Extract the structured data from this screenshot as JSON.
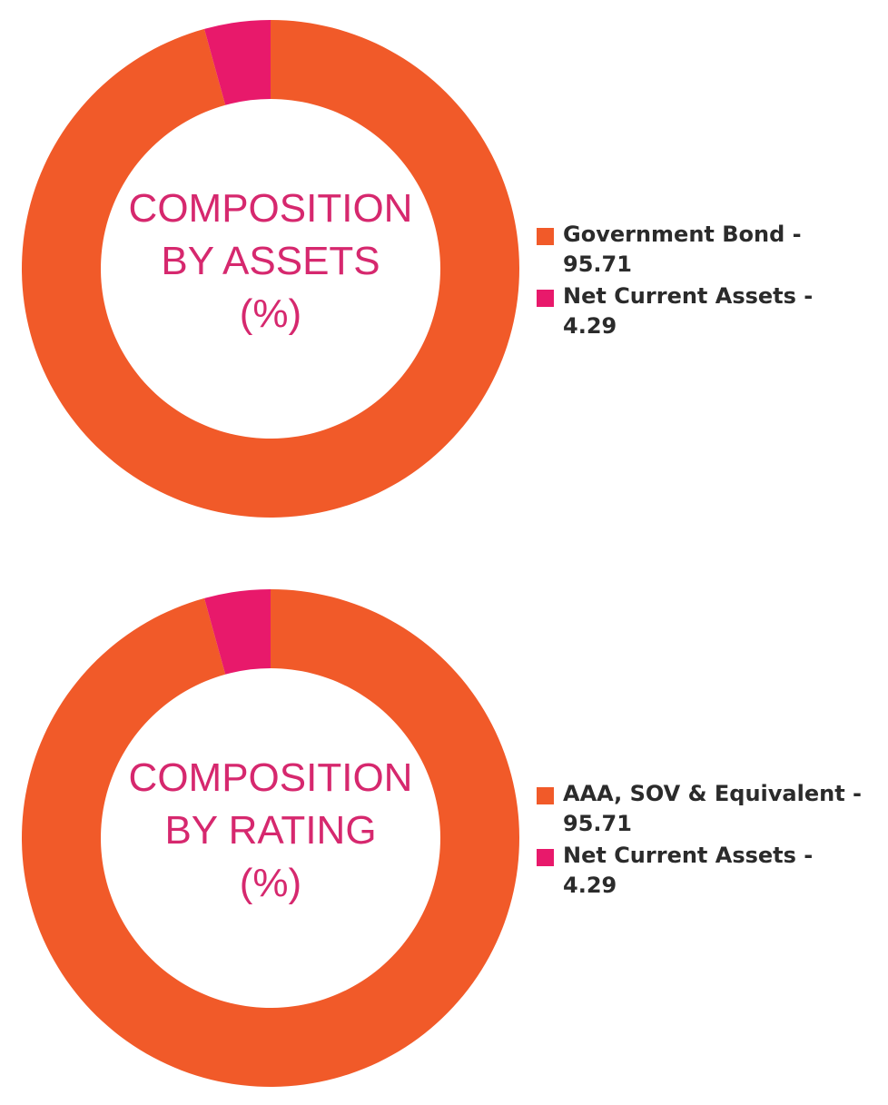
{
  "chart_data": [
    {
      "type": "pie",
      "variant": "donut",
      "title_lines": [
        "COMPOSITION",
        "BY ASSETS",
        "(%)"
      ],
      "slices": [
        {
          "label": "Government Bond - 95.71",
          "value": 95.71,
          "color": "#f15a29"
        },
        {
          "label": "Net Current Assets - 4.29",
          "value": 4.29,
          "color": "#e8196b"
        }
      ],
      "legend_placement": "right"
    },
    {
      "type": "pie",
      "variant": "donut",
      "title_lines": [
        "COMPOSITION",
        "BY RATING",
        "(%)"
      ],
      "slices": [
        {
          "label": "AAA, SOV & Equivalent - 95.71",
          "value": 95.71,
          "color": "#f15a29"
        },
        {
          "label": "Net Current Assets - 4.29",
          "value": 4.29,
          "color": "#e8196b"
        }
      ],
      "legend_placement": "right"
    }
  ],
  "colors": {
    "title": "#d6286e",
    "legend_text": "#2b2b2b"
  }
}
